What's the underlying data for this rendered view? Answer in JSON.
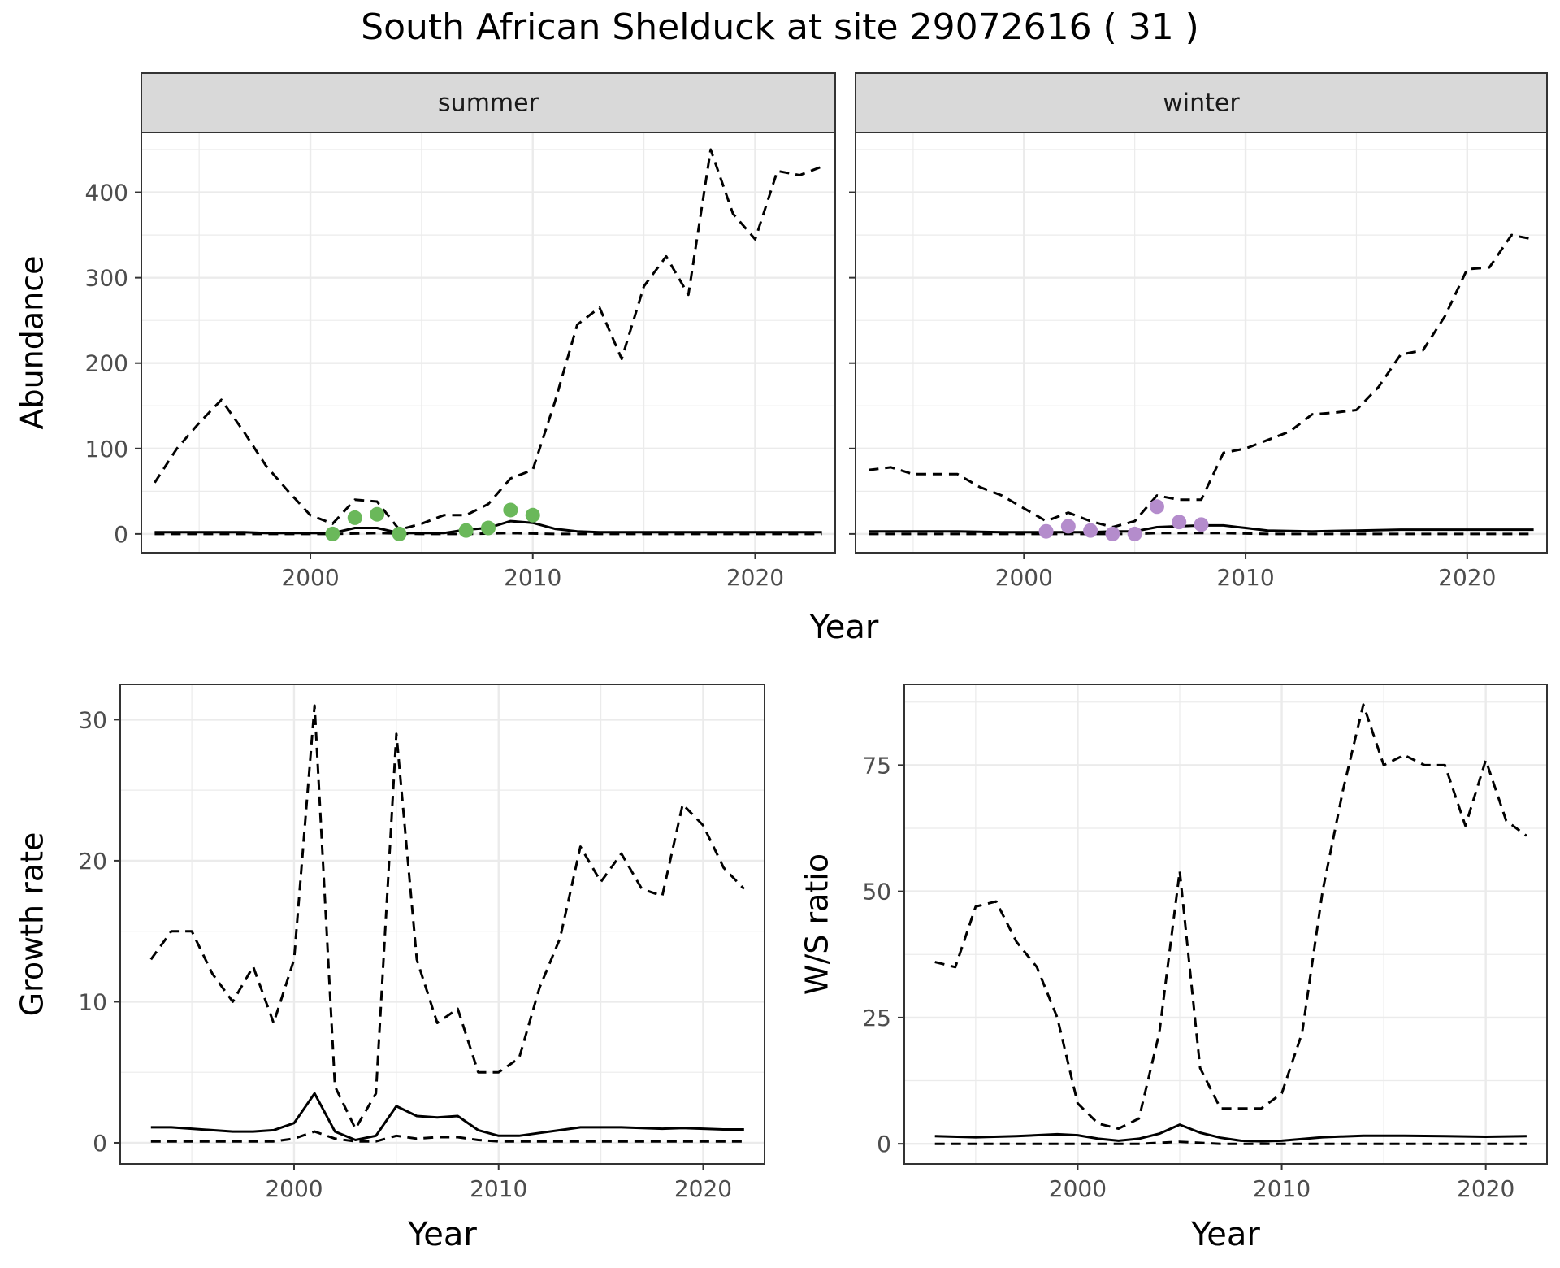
{
  "title": "South African Shelduck at site 29072616 ( 31 )",
  "colors": {
    "summer": "#6ab85a",
    "winter": "#b48ccc",
    "line": "#000000",
    "strip": "#d9d9d9",
    "grid": "#ebebeb"
  },
  "chart_data": [
    {
      "type": "line",
      "panel": "summer",
      "strip_label": "summer",
      "ylabel": "Abundance",
      "xlabel": "Year",
      "xlim": [
        1992.4,
        2023.6
      ],
      "ylim": [
        -22,
        470
      ],
      "xticks": [
        2000,
        2010,
        2020
      ],
      "yticks": [
        0,
        100,
        200,
        300,
        400
      ],
      "series": [
        {
          "style": "dashed",
          "x": [
            1993,
            1994,
            1995,
            1996,
            1997,
            1998,
            1999,
            2000,
            2001,
            2002,
            2003,
            2004,
            2005,
            2006,
            2007,
            2008,
            2009,
            2010,
            2011,
            2012,
            2013,
            2014,
            2015,
            2016,
            2017,
            2018,
            2019,
            2020,
            2021,
            2022,
            2023
          ],
          "y": [
            60,
            100,
            130,
            157,
            120,
            80,
            50,
            22,
            12,
            40,
            38,
            5,
            12,
            22,
            22,
            35,
            65,
            75,
            155,
            245,
            265,
            205,
            290,
            325,
            280,
            450,
            375,
            345,
            425,
            420,
            430
          ]
        },
        {
          "style": "solid",
          "x": [
            1993,
            1994,
            1995,
            1996,
            1997,
            1998,
            1999,
            2000,
            2001,
            2002,
            2003,
            2004,
            2005,
            2006,
            2007,
            2008,
            2009,
            2010,
            2011,
            2012,
            2013,
            2014,
            2015,
            2016,
            2017,
            2018,
            2019,
            2020,
            2021,
            2022,
            2023
          ],
          "y": [
            2,
            2,
            2,
            2,
            2,
            1,
            1,
            1,
            1,
            7,
            7,
            1,
            1,
            1,
            5,
            7,
            15,
            13,
            6,
            3,
            2,
            2,
            2,
            2,
            2,
            2,
            2,
            2,
            2,
            2,
            2
          ]
        },
        {
          "style": "dashed",
          "x": [
            1993,
            1995,
            1997,
            1999,
            2001,
            2003,
            2005,
            2007,
            2009,
            2011,
            2013,
            2015,
            2017,
            2019,
            2021,
            2023
          ],
          "y": [
            0,
            0,
            0,
            0,
            0,
            1,
            0,
            0,
            1,
            0,
            0,
            0,
            0,
            0,
            0,
            0
          ]
        }
      ],
      "points": {
        "x": [
          2001,
          2002,
          2003,
          2004,
          2007,
          2008,
          2009,
          2010
        ],
        "y": [
          0,
          19,
          23,
          0,
          4,
          7,
          28,
          22
        ]
      }
    },
    {
      "type": "line",
      "panel": "winter",
      "strip_label": "winter",
      "xlabel": "Year",
      "xlim": [
        1992.4,
        2023.6
      ],
      "ylim": [
        -22,
        470
      ],
      "xticks": [
        2000,
        2010,
        2020
      ],
      "yticks": [
        0,
        100,
        200,
        300,
        400
      ],
      "series": [
        {
          "style": "dashed",
          "x": [
            1993,
            1994,
            1995,
            1996,
            1997,
            1998,
            1999,
            2000,
            2001,
            2002,
            2003,
            2004,
            2005,
            2006,
            2007,
            2008,
            2009,
            2010,
            2011,
            2012,
            2013,
            2014,
            2015,
            2016,
            2017,
            2018,
            2019,
            2020,
            2021,
            2022,
            2023
          ],
          "y": [
            75,
            78,
            70,
            70,
            70,
            55,
            45,
            30,
            15,
            25,
            15,
            8,
            15,
            45,
            40,
            40,
            95,
            100,
            110,
            120,
            140,
            142,
            145,
            172,
            210,
            215,
            255,
            310,
            312,
            350,
            345
          ]
        },
        {
          "style": "solid",
          "x": [
            1993,
            1995,
            1997,
            1999,
            2001,
            2003,
            2004,
            2005,
            2006,
            2007,
            2008,
            2009,
            2010,
            2011,
            2013,
            2015,
            2017,
            2019,
            2021,
            2023
          ],
          "y": [
            3,
            3,
            3,
            2,
            2,
            2,
            3,
            3,
            8,
            9,
            10,
            10,
            7,
            4,
            3,
            4,
            5,
            5,
            5,
            5
          ]
        },
        {
          "style": "dashed",
          "x": [
            1993,
            1995,
            1997,
            1999,
            2001,
            2003,
            2005,
            2006,
            2007,
            2009,
            2011,
            2013,
            2015,
            2017,
            2019,
            2021,
            2023
          ],
          "y": [
            0,
            0,
            0,
            0,
            0,
            0,
            0,
            1,
            1,
            1,
            0,
            0,
            0,
            0,
            0,
            0,
            0
          ]
        }
      ],
      "points": {
        "x": [
          2001,
          2002,
          2003,
          2004,
          2005,
          2006,
          2007,
          2008
        ],
        "y": [
          3,
          9,
          4,
          0,
          0,
          32,
          14,
          11
        ]
      }
    },
    {
      "type": "line",
      "panel": "growth",
      "ylabel": "Growth rate",
      "xlabel": "Year",
      "xlim": [
        1991.5,
        2023.0
      ],
      "ylim": [
        -1.5,
        32.5
      ],
      "xticks": [
        2000,
        2010,
        2020
      ],
      "yticks": [
        0,
        10,
        20,
        30
      ],
      "series": [
        {
          "style": "dashed",
          "x": [
            1993,
            1994,
            1995,
            1996,
            1997,
            1998,
            1999,
            2000,
            2001,
            2002,
            2003,
            2004,
            2005,
            2006,
            2007,
            2008,
            2009,
            2010,
            2011,
            2012,
            2013,
            2014,
            2015,
            2016,
            2017,
            2018,
            2019,
            2020,
            2021,
            2022
          ],
          "y": [
            13,
            15,
            15,
            12,
            10,
            12.5,
            8.5,
            13,
            31,
            4,
            1,
            3.5,
            29,
            13,
            8.5,
            9.5,
            5,
            5,
            6,
            11,
            14.5,
            21,
            18.5,
            20.5,
            18,
            17.5,
            24,
            22.5,
            19.5,
            18
          ]
        },
        {
          "style": "solid",
          "x": [
            1993,
            1994,
            1995,
            1996,
            1997,
            1998,
            1999,
            2000,
            2001,
            2002,
            2003,
            2004,
            2005,
            2006,
            2007,
            2008,
            2009,
            2010,
            2011,
            2012,
            2013,
            2014,
            2015,
            2016,
            2017,
            2018,
            2019,
            2020,
            2021,
            2022
          ],
          "y": [
            1.1,
            1.1,
            1.0,
            0.9,
            0.8,
            0.8,
            0.9,
            1.4,
            3.5,
            0.8,
            0.2,
            0.5,
            2.6,
            1.9,
            1.8,
            1.9,
            0.9,
            0.5,
            0.5,
            0.7,
            0.9,
            1.1,
            1.1,
            1.1,
            1.05,
            1.0,
            1.05,
            1.0,
            0.95,
            0.95
          ]
        },
        {
          "style": "dashed",
          "x": [
            1993,
            1995,
            1997,
            1999,
            2000,
            2001,
            2002,
            2003,
            2004,
            2005,
            2006,
            2007,
            2008,
            2009,
            2010,
            2012,
            2014,
            2016,
            2018,
            2020,
            2022
          ],
          "y": [
            0.1,
            0.1,
            0.1,
            0.1,
            0.3,
            0.8,
            0.3,
            0.1,
            0.1,
            0.5,
            0.3,
            0.4,
            0.4,
            0.2,
            0.1,
            0.1,
            0.1,
            0.1,
            0.1,
            0.1,
            0.1
          ]
        }
      ]
    },
    {
      "type": "line",
      "panel": "ratio",
      "ylabel": "W/S ratio",
      "xlabel": "Year",
      "xlim": [
        1991.5,
        2023.0
      ],
      "ylim": [
        -4,
        91
      ],
      "xticks": [
        2000,
        2010,
        2020
      ],
      "yticks": [
        0,
        25,
        50,
        75
      ],
      "series": [
        {
          "style": "dashed",
          "x": [
            1993,
            1994,
            1995,
            1996,
            1997,
            1998,
            1999,
            2000,
            2001,
            2002,
            2003,
            2004,
            2005,
            2006,
            2007,
            2008,
            2009,
            2010,
            2011,
            2012,
            2013,
            2014,
            2015,
            2016,
            2017,
            2018,
            2019,
            2020,
            2021,
            2022
          ],
          "y": [
            36,
            35,
            47,
            48,
            40,
            35,
            25,
            8,
            4,
            3,
            5,
            22,
            54,
            15,
            7,
            7,
            7,
            10,
            22,
            50,
            70,
            87,
            75,
            77,
            75,
            75,
            63,
            76,
            64,
            61
          ]
        },
        {
          "style": "solid",
          "x": [
            1993,
            1995,
            1997,
            1999,
            2000,
            2001,
            2002,
            2003,
            2004,
            2005,
            2006,
            2007,
            2008,
            2009,
            2010,
            2012,
            2014,
            2016,
            2018,
            2020,
            2022
          ],
          "y": [
            1.5,
            1.3,
            1.5,
            1.9,
            1.7,
            1.0,
            0.6,
            1.0,
            2.0,
            3.8,
            2.2,
            1.2,
            0.6,
            0.5,
            0.6,
            1.3,
            1.6,
            1.6,
            1.5,
            1.4,
            1.5
          ]
        },
        {
          "style": "dashed",
          "x": [
            1993,
            1995,
            1997,
            1999,
            2001,
            2003,
            2005,
            2007,
            2009,
            2011,
            2013,
            2015,
            2017,
            2019,
            2021,
            2022
          ],
          "y": [
            0,
            0,
            0,
            0,
            0,
            0,
            0.4,
            0,
            0,
            0,
            0,
            0,
            0,
            0,
            0,
            0
          ]
        }
      ]
    }
  ]
}
